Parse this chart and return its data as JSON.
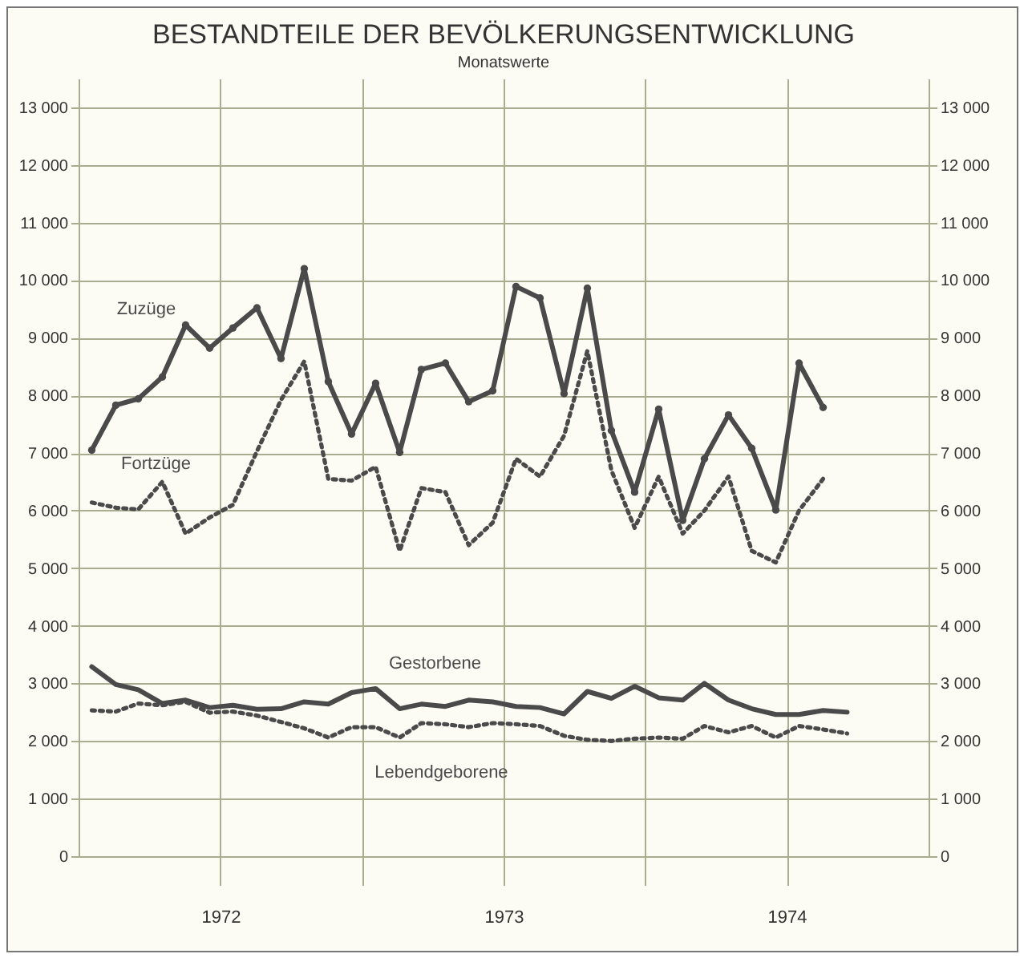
{
  "chart_data": {
    "type": "line",
    "title": "BESTANDTEILE DER BEVÖLKERUNGSENTWICKLUNG",
    "subtitle": "Monatswerte",
    "x": [
      "1972-01",
      "1972-02",
      "1972-03",
      "1972-04",
      "1972-05",
      "1972-06",
      "1972-07",
      "1972-08",
      "1972-09",
      "1972-10",
      "1972-11",
      "1972-12",
      "1973-01",
      "1973-02",
      "1973-03",
      "1973-04",
      "1973-05",
      "1973-06",
      "1973-07",
      "1973-08",
      "1973-09",
      "1973-10",
      "1973-11",
      "1973-12",
      "1974-01",
      "1974-02",
      "1974-03",
      "1974-04",
      "1974-05",
      "1974-06",
      "1974-07",
      "1974-08",
      "1974-09"
    ],
    "series": [
      {
        "name": "Zuzüge",
        "color": "#4a4a4a",
        "line_style": "solid",
        "marker": "circle",
        "values": [
          7050,
          7830,
          7940,
          8320,
          9220,
          8820,
          9170,
          9520,
          8640,
          10200,
          8240,
          7330,
          8210,
          7010,
          8450,
          8560,
          7890,
          8080,
          9890,
          9690,
          8030,
          9860,
          7390,
          6320,
          7760,
          5830,
          6900,
          7660,
          7080,
          6010,
          8560,
          7790,
          null
        ]
      },
      {
        "name": "Fortzüge",
        "color": "#4a4a4a",
        "line_style": "dotted",
        "marker": "none",
        "values": [
          6140,
          6050,
          6020,
          6500,
          5600,
          5880,
          6100,
          7030,
          7920,
          8590,
          6550,
          6520,
          6760,
          5300,
          6390,
          6320,
          5400,
          5790,
          6900,
          6590,
          7300,
          8770,
          6700,
          5700,
          6590,
          5600,
          6000,
          6590,
          5300,
          5100,
          6000,
          6550,
          null
        ]
      },
      {
        "name": "Gestorbene",
        "color": "#4a4a4a",
        "line_style": "solid",
        "marker": "none",
        "values": [
          3290,
          2980,
          2890,
          2650,
          2710,
          2580,
          2620,
          2550,
          2560,
          2680,
          2640,
          2840,
          2910,
          2560,
          2640,
          2600,
          2710,
          2680,
          2600,
          2580,
          2470,
          2860,
          2740,
          2950,
          2750,
          2710,
          3000,
          2710,
          2560,
          2460,
          2460,
          2530,
          2500
        ]
      },
      {
        "name": "Lebendgeborene",
        "color": "#4a4a4a",
        "line_style": "dotted",
        "marker": "none",
        "values": [
          2530,
          2510,
          2650,
          2620,
          2680,
          2490,
          2510,
          2440,
          2330,
          2220,
          2060,
          2240,
          2240,
          2060,
          2310,
          2290,
          2240,
          2310,
          2290,
          2260,
          2090,
          2020,
          2000,
          2040,
          2060,
          2040,
          2260,
          2150,
          2260,
          2060,
          2260,
          2200,
          2130
        ]
      }
    ],
    "xlim": [
      "1971-12-15",
      "1974-12-15"
    ],
    "xticks": [
      {
        "value": "1972-06-15",
        "label": "1972"
      },
      {
        "value": "1972-12-15",
        "label": null
      },
      {
        "value": "1973-06-15",
        "label": "1973"
      },
      {
        "value": "1973-12-15",
        "label": null
      },
      {
        "value": "1974-06-15",
        "label": "1974"
      }
    ],
    "ylim": [
      0,
      13500
    ],
    "yticks": [
      {
        "value": 0,
        "label": "0"
      },
      {
        "value": 1000,
        "label": "1 000"
      },
      {
        "value": 2000,
        "label": "2 000"
      },
      {
        "value": 3000,
        "label": "3 000"
      },
      {
        "value": 4000,
        "label": "4 000"
      },
      {
        "value": 5000,
        "label": "5 000"
      },
      {
        "value": 6000,
        "label": "6 000"
      },
      {
        "value": 7000,
        "label": "7 000"
      },
      {
        "value": 8000,
        "label": "8 000"
      },
      {
        "value": 9000,
        "label": "9 000"
      },
      {
        "value": 10000,
        "label": "10 000"
      },
      {
        "value": 11000,
        "label": "11 000"
      },
      {
        "value": 12000,
        "label": "12 000"
      },
      {
        "value": 13000,
        "label": "13 000"
      }
    ],
    "y2lim": [
      0,
      13500
    ],
    "y2ticks": [
      {
        "value": 0,
        "label": "0"
      },
      {
        "value": 1000,
        "label": "1 000"
      },
      {
        "value": 2000,
        "label": "2 000"
      },
      {
        "value": 3000,
        "label": "3 000"
      },
      {
        "value": 4000,
        "label": "4 000"
      },
      {
        "value": 5000,
        "label": "5 000"
      },
      {
        "value": 6000,
        "label": "6 000"
      },
      {
        "value": 7000,
        "label": "7 000"
      },
      {
        "value": 8000,
        "label": "8 000"
      },
      {
        "value": 9000,
        "label": "9 000"
      },
      {
        "value": 10000,
        "label": "10 000"
      },
      {
        "value": 11000,
        "label": "11 000"
      },
      {
        "value": 12000,
        "label": "12 000"
      },
      {
        "value": 13000,
        "label": "13 000"
      }
    ],
    "grid": true
  }
}
